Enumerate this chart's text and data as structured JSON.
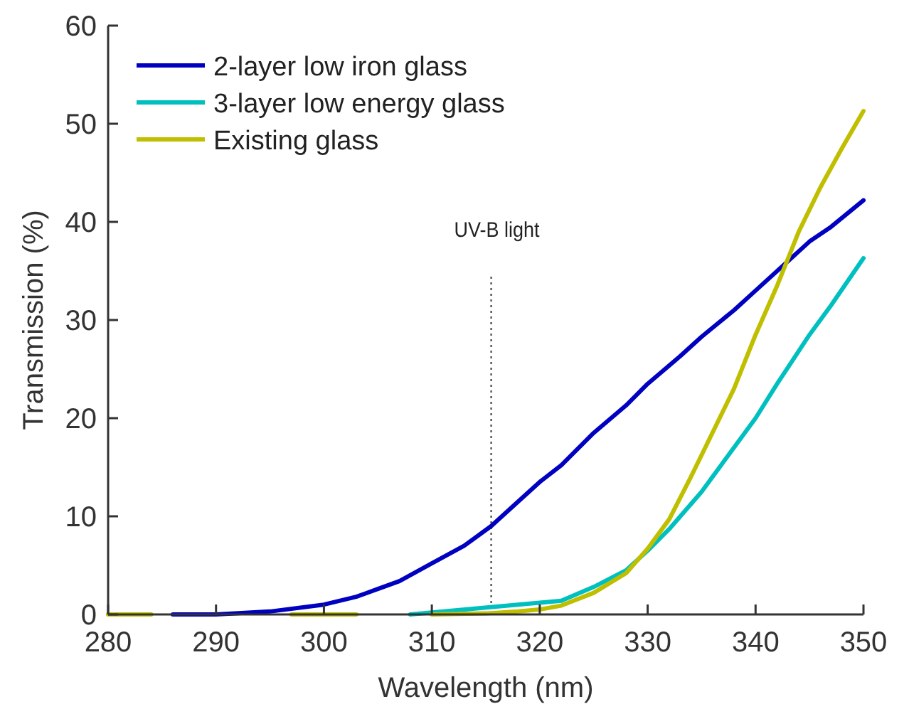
{
  "chart_data": {
    "type": "line",
    "xlabel": "Wavelength (nm)",
    "ylabel": "Transmission (%)",
    "xlim": [
      280,
      350
    ],
    "xticks": [
      280,
      290,
      300,
      310,
      320,
      330,
      340,
      350
    ],
    "ylim": [
      0,
      60
    ],
    "yticks": [
      0,
      10,
      20,
      30,
      40,
      50,
      60
    ],
    "grid": false,
    "legend": "top left",
    "line_style": "solid",
    "marker": "none",
    "ref_lines": [
      {
        "axis": "x",
        "value": 315.5,
        "label": "UV-B light",
        "color": "#555555",
        "line_style": "dotted"
      }
    ],
    "series": [
      {
        "name": "2-layer low iron glass",
        "color": "#0000c0",
        "x": [
          286,
          290,
          295,
          300,
          303,
          305,
          307,
          310,
          313,
          315.5,
          318,
          320,
          322,
          325,
          328,
          330,
          333,
          335,
          338,
          340,
          343,
          345,
          347,
          350
        ],
        "values": [
          0,
          0,
          0.3,
          1.0,
          1.8,
          2.6,
          3.4,
          5.2,
          7.0,
          9.0,
          11.5,
          13.5,
          15.2,
          18.5,
          21.3,
          23.5,
          26.3,
          28.3,
          31.0,
          33.0,
          36.0,
          38.0,
          39.5,
          42.2
        ]
      },
      {
        "name": "3-layer low energy glass",
        "color": "#00bfbf",
        "x": [
          308,
          322,
          325,
          328,
          330,
          332,
          335,
          337,
          340,
          342,
          345,
          347,
          350
        ],
        "values": [
          0,
          1.4,
          2.8,
          4.5,
          6.5,
          8.7,
          12.5,
          15.5,
          20.0,
          23.5,
          28.5,
          31.5,
          36.3
        ]
      },
      {
        "name": "Existing glass",
        "color": "#bfbf00",
        "x": [
          280,
          284,
          290,
          297,
          303,
          306,
          310,
          315,
          318,
          320,
          322,
          325,
          328,
          330,
          332,
          334,
          336,
          338,
          340,
          342,
          344,
          346,
          348,
          350
        ],
        "values": [
          0,
          0,
          null,
          0,
          0,
          null,
          0,
          0.1,
          0.3,
          0.5,
          0.9,
          2.2,
          4.2,
          6.7,
          9.7,
          14,
          18.5,
          23,
          28.5,
          33.5,
          39,
          43.5,
          47.5,
          51.3
        ]
      }
    ]
  }
}
